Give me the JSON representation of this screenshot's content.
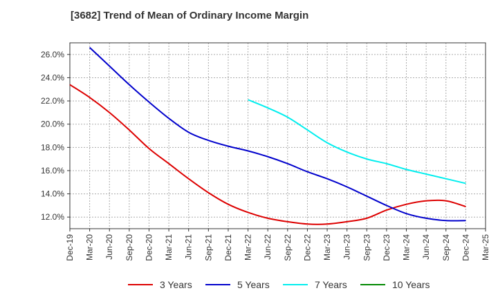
{
  "chart_data": {
    "type": "line",
    "title": "[3682]  Trend of Mean of Ordinary Income Margin",
    "xlabel": "",
    "ylabel": "",
    "x_tick_labels": [
      "Dec-19",
      "Mar-20",
      "Jun-20",
      "Sep-20",
      "Dec-20",
      "Mar-21",
      "Jun-21",
      "Sep-21",
      "Dec-21",
      "Mar-22",
      "Jun-22",
      "Sep-22",
      "Dec-22",
      "Mar-23",
      "Jun-23",
      "Sep-23",
      "Dec-23",
      "Mar-24",
      "Jun-24",
      "Sep-24",
      "Dec-24",
      "Mar-25"
    ],
    "y_tick_labels": [
      "12.0%",
      "14.0%",
      "16.0%",
      "18.0%",
      "20.0%",
      "22.0%",
      "24.0%",
      "26.0%"
    ],
    "y_ticks": [
      12,
      14,
      16,
      18,
      20,
      22,
      24,
      26
    ],
    "ylim": [
      11.0,
      27.0
    ],
    "grid": true,
    "legend_position": "bottom",
    "series": [
      {
        "name": "3 Years",
        "color": "#dd0000",
        "values": [
          23.4,
          22.3,
          21.0,
          19.5,
          17.9,
          16.6,
          15.3,
          14.1,
          13.1,
          12.4,
          11.9,
          11.6,
          11.4,
          11.4,
          11.6,
          11.9,
          12.6,
          13.1,
          13.4,
          13.4,
          12.9,
          null
        ]
      },
      {
        "name": "5 Years",
        "color": "#0000cc",
        "values": [
          null,
          26.6,
          25.0,
          23.4,
          21.9,
          20.5,
          19.3,
          18.6,
          18.1,
          17.7,
          17.2,
          16.6,
          15.9,
          15.3,
          14.6,
          13.8,
          13.0,
          12.3,
          11.9,
          11.7,
          11.7,
          null
        ]
      },
      {
        "name": "7 Years",
        "color": "#00eeee",
        "values": [
          null,
          null,
          null,
          null,
          null,
          null,
          null,
          null,
          null,
          22.1,
          21.4,
          20.6,
          19.5,
          18.4,
          17.6,
          17.0,
          16.6,
          16.1,
          15.7,
          15.3,
          14.9,
          null
        ]
      },
      {
        "name": "10 Years",
        "color": "#008800",
        "values": [
          null,
          null,
          null,
          null,
          null,
          null,
          null,
          null,
          null,
          null,
          null,
          null,
          null,
          null,
          null,
          null,
          null,
          null,
          null,
          null,
          null,
          null
        ]
      }
    ]
  }
}
